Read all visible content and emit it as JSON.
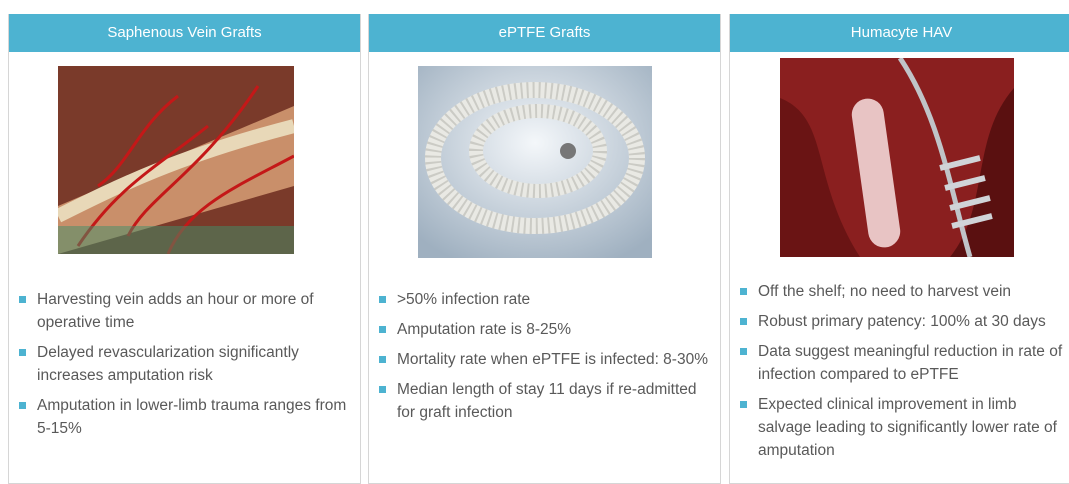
{
  "columns": [
    {
      "title": "Saphenous Vein Grafts",
      "bullets": [
        "Harvesting vein adds an hour or more of operative time",
        "Delayed revascularization significantly increases amputation risk",
        "Amputation in lower-limb trauma ranges from 5-15%"
      ]
    },
    {
      "title": "ePTFE Grafts",
      "bullets": [
        ">50% infection rate",
        "Amputation rate is 8-25%",
        "Mortality rate when ePTFE is infected: 8-30%",
        "Median length of stay 11 days if re-admitted for graft infection"
      ]
    },
    {
      "title": "Humacyte HAV",
      "bullets": [
        "Off the shelf; no need to harvest vein",
        "Robust primary patency: 100% at 30 days",
        "Data suggest meaningful reduction in rate of infection compared to ePTFE",
        "Expected clinical improvement in limb salvage leading to significantly lower rate of amputation"
      ]
    }
  ]
}
